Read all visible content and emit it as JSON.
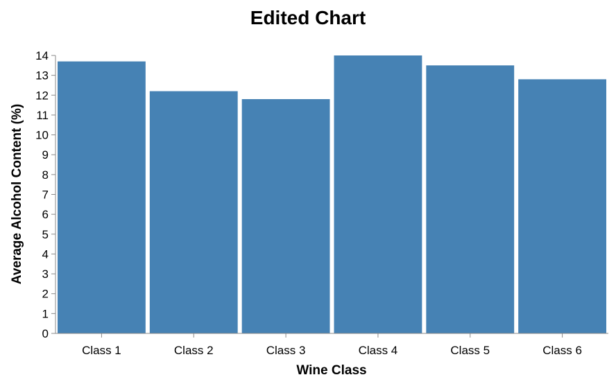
{
  "chart_data": {
    "type": "bar",
    "title": "Edited Chart",
    "xlabel": "Wine Class",
    "ylabel": "Average Alcohol Content (%)",
    "categories": [
      "Class 1",
      "Class 2",
      "Class 3",
      "Class 4",
      "Class 5",
      "Class 6"
    ],
    "values": [
      13.7,
      12.2,
      11.8,
      14.0,
      13.5,
      12.8
    ],
    "ylim": [
      0,
      14
    ],
    "yticks": [
      "0",
      "1",
      "2",
      "3",
      "4",
      "5",
      "6",
      "7",
      "8",
      "9",
      "10",
      "11",
      "12",
      "13",
      "14"
    ],
    "grid": false,
    "legend": "none",
    "bar_color": "#4682b4"
  }
}
